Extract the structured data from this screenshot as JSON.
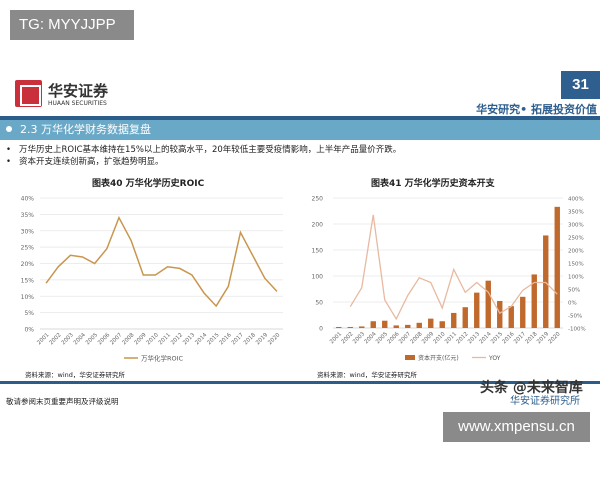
{
  "tag_label": "TG: MYYJJPP",
  "header": {
    "brand_cn": "华安证券",
    "brand_en": "HUAAN SECURITIES",
    "page_number": "31",
    "slogan": "华安研究• 拓展投资价值"
  },
  "section": {
    "title": "2.3 万华化学财务数据复盘"
  },
  "bullets": [
    "万华历史上ROIC基本维持在15%以上的较高水平，20年较低主要受疫情影响，上半年产品量价齐跌。",
    "资本开支连续创新高，扩张趋势明显。"
  ],
  "source_left": "资料来源：wind，华安证券研究所",
  "source_right": "资料来源：wind，华安证券研究所",
  "disclaimer": "敬请参阅末页重要声明及评级说明",
  "watermark": {
    "line1": "头条 @未来智库",
    "line2": "华安证券研究所"
  },
  "url_label": "www.xmpensu.cn",
  "chart_data": [
    {
      "type": "line",
      "title": "图表40 万华化学历史ROIC",
      "categories": [
        "2001",
        "2002",
        "2003",
        "2004",
        "2005",
        "2006",
        "2007",
        "2008",
        "2009",
        "2010",
        "2011",
        "2012",
        "2013",
        "2014",
        "2015",
        "2016",
        "2017",
        "2018",
        "2019",
        "2020"
      ],
      "series": [
        {
          "name": "万华化学ROIC",
          "color": "#c8964e",
          "values": [
            14,
            19,
            22.5,
            22,
            20,
            24.5,
            34,
            27,
            16.5,
            16.5,
            19,
            18.5,
            16.5,
            11,
            7,
            13,
            29.5,
            22.5,
            15.5,
            11.5
          ]
        }
      ],
      "yticks": [
        "0%",
        "5%",
        "10%",
        "15%",
        "20%",
        "25%",
        "30%",
        "35%",
        "40%"
      ],
      "ylim": [
        0,
        40
      ],
      "grid": true,
      "legend": "bottom"
    },
    {
      "type": "bar+line",
      "title": "图表41 万华化学历史资本开支",
      "categories": [
        "2001",
        "2002",
        "2003",
        "2004",
        "2005",
        "2006",
        "2007",
        "2008",
        "2009",
        "2010",
        "2011",
        "2012",
        "2013",
        "2014",
        "2015",
        "2016",
        "2017",
        "2018",
        "2019",
        "2020"
      ],
      "series": [
        {
          "name": "资本开支(亿元)",
          "type": "bar",
          "axis": "left",
          "color": "#c0692c",
          "values": [
            2,
            2,
            3,
            13,
            14,
            5,
            6,
            10,
            18,
            13,
            29,
            40,
            68,
            91,
            52,
            42,
            60,
            103,
            178,
            233
          ]
        },
        {
          "name": "YOY",
          "type": "line",
          "axis": "right",
          "color": "#e8b9a0",
          "values": [
            null,
            -18,
            55,
            335,
            8,
            -65,
            25,
            93,
            75,
            -23,
            125,
            37,
            75,
            38,
            -43,
            -17,
            45,
            75,
            75,
            30
          ]
        }
      ],
      "yticks_left": [
        "0",
        "50",
        "100",
        "150",
        "200",
        "250"
      ],
      "ylim_left": [
        0,
        250
      ],
      "yticks_right": [
        "-100%",
        "-50%",
        "0%",
        "50%",
        "100%",
        "150%",
        "200%",
        "250%",
        "300%",
        "350%",
        "400%"
      ],
      "ylim_right": [
        -100,
        400
      ],
      "grid": true,
      "legend": "bottom"
    }
  ]
}
